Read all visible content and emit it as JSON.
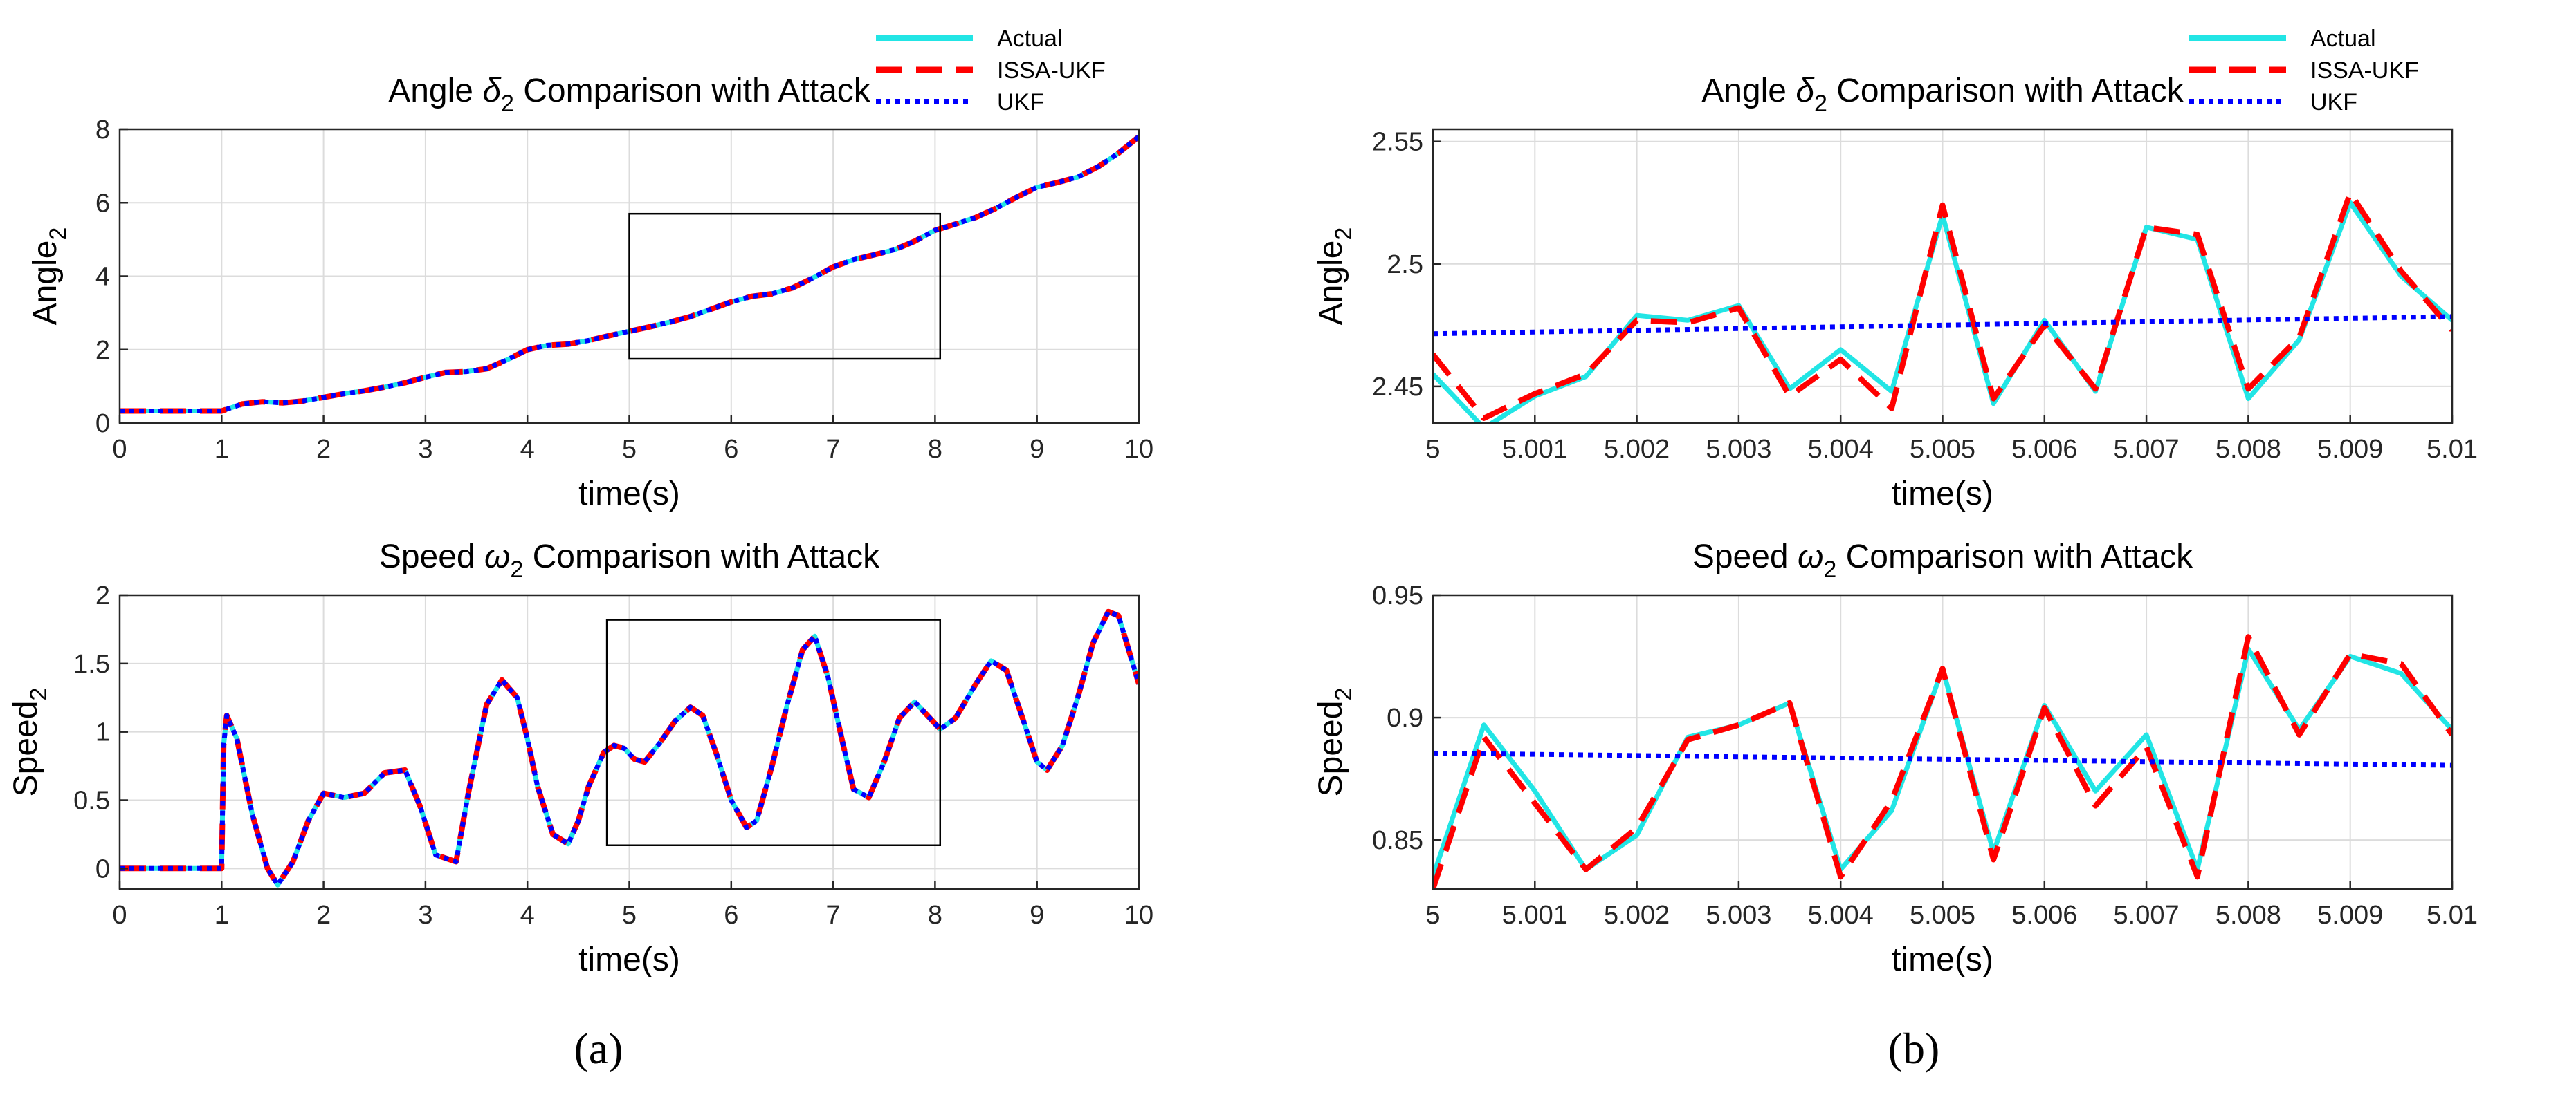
{
  "panel_labels": {
    "a": "(a)",
    "b": "(b)"
  },
  "colors": {
    "actual": "#22e5e5",
    "issa_ukf": "#ff0000",
    "ukf": "#0000ff",
    "grid": "#dcdcdc",
    "axis": "#262626"
  },
  "chart_data": [
    {
      "id": "a-angle",
      "type": "line",
      "title": "Angle δ2 Comparison with Attack",
      "title_parts": {
        "pre": "Angle ",
        "sym": "δ",
        "sub": "2",
        "post": " Comparison with Attack"
      },
      "xlabel": "time(s)",
      "ylabel_parts": {
        "base": "Angle",
        "sub": "2"
      },
      "xlim": [
        0,
        10
      ],
      "ylim": [
        0,
        8
      ],
      "xticks": [
        0,
        1,
        2,
        3,
        4,
        5,
        6,
        7,
        8,
        9,
        10
      ],
      "xtick_labels": [
        "0",
        "1",
        "2",
        "3",
        "4",
        "5",
        "6",
        "7",
        "8",
        "9",
        "10"
      ],
      "yticks": [
        0,
        2,
        4,
        6,
        8
      ],
      "ytick_labels": [
        "0",
        "2",
        "4",
        "6",
        "8"
      ],
      "zoom_box": {
        "x": [
          5.0,
          8.05
        ],
        "y": [
          1.75,
          5.7
        ]
      },
      "series": [
        {
          "name": "Actual",
          "x": [
            0,
            0.5,
            1,
            1.2,
            1.4,
            1.6,
            1.8,
            2,
            2.2,
            2.4,
            2.6,
            2.8,
            3,
            3.2,
            3.4,
            3.6,
            3.8,
            4,
            4.2,
            4.4,
            4.6,
            4.8,
            5,
            5.2,
            5.4,
            5.6,
            5.8,
            6,
            6.2,
            6.4,
            6.6,
            6.8,
            7,
            7.2,
            7.4,
            7.6,
            7.8,
            8,
            8.2,
            8.4,
            8.6,
            8.8,
            9,
            9.2,
            9.4,
            9.6,
            9.8,
            10
          ],
          "y": [
            0.33,
            0.33,
            0.33,
            0.52,
            0.58,
            0.55,
            0.6,
            0.7,
            0.8,
            0.88,
            0.98,
            1.1,
            1.25,
            1.38,
            1.4,
            1.48,
            1.72,
            2.0,
            2.12,
            2.15,
            2.25,
            2.38,
            2.5,
            2.62,
            2.75,
            2.9,
            3.1,
            3.3,
            3.45,
            3.52,
            3.68,
            3.95,
            4.25,
            4.45,
            4.58,
            4.72,
            4.95,
            5.25,
            5.42,
            5.6,
            5.85,
            6.15,
            6.42,
            6.55,
            6.7,
            6.98,
            7.35,
            7.8
          ]
        },
        {
          "name": "ISSA-UKF",
          "same_as": "Actual"
        },
        {
          "name": "UKF",
          "same_as": "Actual"
        }
      ],
      "legend": {
        "placement": "top-right-outside",
        "entries": [
          "Actual",
          "ISSA-UKF",
          "UKF"
        ]
      }
    },
    {
      "id": "a-speed",
      "type": "line",
      "title": "Speed ω2 Comparison with Attack",
      "title_parts": {
        "pre": "Speed ",
        "sym": "ω",
        "sub": "2",
        "post": " Comparison with Attack"
      },
      "xlabel": "time(s)",
      "ylabel_parts": {
        "base": "Speed",
        "sub": "2"
      },
      "xlim": [
        0,
        10
      ],
      "ylim": [
        -0.15,
        2
      ],
      "xticks": [
        0,
        1,
        2,
        3,
        4,
        5,
        6,
        7,
        8,
        9,
        10
      ],
      "xtick_labels": [
        "0",
        "1",
        "2",
        "3",
        "4",
        "5",
        "6",
        "7",
        "8",
        "9",
        "10"
      ],
      "yticks": [
        0,
        0.5,
        1,
        1.5,
        2
      ],
      "ytick_labels": [
        "0",
        "0.5",
        "1",
        "1.5",
        "2"
      ],
      "zoom_box": {
        "x": [
          4.78,
          8.05
        ],
        "y": [
          0.17,
          1.82
        ]
      },
      "series": [
        {
          "name": "Actual",
          "x": [
            0,
            0.5,
            1.0,
            1.02,
            1.05,
            1.15,
            1.3,
            1.45,
            1.55,
            1.7,
            1.85,
            2.0,
            2.2,
            2.4,
            2.6,
            2.8,
            2.95,
            3.1,
            3.3,
            3.42,
            3.6,
            3.75,
            3.9,
            4.0,
            4.1,
            4.25,
            4.4,
            4.5,
            4.6,
            4.75,
            4.85,
            4.95,
            5.05,
            5.15,
            5.3,
            5.45,
            5.6,
            5.72,
            5.85,
            6.0,
            6.15,
            6.25,
            6.4,
            6.55,
            6.7,
            6.82,
            6.95,
            7.1,
            7.2,
            7.35,
            7.5,
            7.65,
            7.8,
            7.95,
            8.05,
            8.2,
            8.4,
            8.55,
            8.7,
            8.85,
            9.0,
            9.1,
            9.25,
            9.4,
            9.55,
            9.7,
            9.8,
            9.9,
            10.0
          ],
          "y": [
            0,
            0,
            0,
            0.9,
            1.12,
            0.95,
            0.4,
            0.0,
            -0.12,
            0.05,
            0.35,
            0.55,
            0.52,
            0.55,
            0.7,
            0.72,
            0.45,
            0.1,
            0.05,
            0.55,
            1.2,
            1.38,
            1.25,
            0.95,
            0.6,
            0.25,
            0.18,
            0.35,
            0.6,
            0.85,
            0.9,
            0.88,
            0.8,
            0.78,
            0.92,
            1.08,
            1.18,
            1.12,
            0.85,
            0.5,
            0.3,
            0.35,
            0.75,
            1.2,
            1.6,
            1.7,
            1.4,
            0.9,
            0.58,
            0.52,
            0.78,
            1.1,
            1.22,
            1.1,
            1.02,
            1.1,
            1.35,
            1.52,
            1.45,
            1.12,
            0.78,
            0.72,
            0.9,
            1.25,
            1.65,
            1.88,
            1.85,
            1.6,
            1.35
          ]
        },
        {
          "name": "ISSA-UKF",
          "same_as": "Actual"
        },
        {
          "name": "UKF",
          "same_as": "Actual"
        }
      ]
    },
    {
      "id": "b-angle",
      "type": "line",
      "title": "Angle δ2 Comparison with Attack",
      "title_parts": {
        "pre": "Angle ",
        "sym": "δ",
        "sub": "2",
        "post": " Comparison with Attack"
      },
      "xlabel": "time(s)",
      "ylabel_parts": {
        "base": "Angle",
        "sub": "2"
      },
      "xlim": [
        5,
        5.01
      ],
      "ylim": [
        2.435,
        2.555
      ],
      "xticks": [
        5,
        5.001,
        5.002,
        5.003,
        5.004,
        5.005,
        5.006,
        5.007,
        5.008,
        5.009,
        5.01
      ],
      "xtick_labels": [
        "5",
        "5.001",
        "5.002",
        "5.003",
        "5.004",
        "5.005",
        "5.006",
        "5.007",
        "5.008",
        "5.009",
        "5.01"
      ],
      "yticks": [
        2.45,
        2.5,
        2.55
      ],
      "ytick_labels": [
        "2.45",
        "2.5",
        "2.55"
      ],
      "series": [
        {
          "name": "Actual",
          "x": [
            5,
            5.0005,
            5.001,
            5.0015,
            5.002,
            5.0025,
            5.003,
            5.0035,
            5.004,
            5.0045,
            5.005,
            5.0055,
            5.006,
            5.0065,
            5.007,
            5.0075,
            5.008,
            5.0085,
            5.009,
            5.0095,
            5.01
          ],
          "y": [
            2.455,
            2.433,
            2.446,
            2.454,
            2.479,
            2.477,
            2.483,
            2.449,
            2.465,
            2.448,
            2.52,
            2.443,
            2.477,
            2.448,
            2.515,
            2.51,
            2.445,
            2.469,
            2.525,
            2.495,
            2.477
          ]
        },
        {
          "name": "ISSA-UKF",
          "x": [
            5,
            5.0005,
            5.001,
            5.0015,
            5.002,
            5.0025,
            5.003,
            5.0035,
            5.004,
            5.0045,
            5.005,
            5.0055,
            5.006,
            5.0065,
            5.007,
            5.0075,
            5.008,
            5.0085,
            5.009,
            5.0095,
            5.01
          ],
          "y": [
            2.463,
            2.437,
            2.447,
            2.455,
            2.477,
            2.476,
            2.482,
            2.446,
            2.461,
            2.441,
            2.524,
            2.445,
            2.475,
            2.449,
            2.515,
            2.512,
            2.449,
            2.47,
            2.529,
            2.497,
            2.473
          ]
        },
        {
          "name": "UKF",
          "x": [
            5,
            5.01
          ],
          "y": [
            2.4715,
            2.4785
          ]
        }
      ],
      "legend": {
        "placement": "top-right-outside",
        "entries": [
          "Actual",
          "ISSA-UKF",
          "UKF"
        ]
      }
    },
    {
      "id": "b-speed",
      "type": "line",
      "title": "Speed ω2 Comparison with Attack",
      "title_parts": {
        "pre": "Speed ",
        "sym": "ω",
        "sub": "2",
        "post": " Comparison with Attack"
      },
      "xlabel": "time(s)",
      "ylabel_parts": {
        "base": "Speed",
        "sub": "2"
      },
      "xlim": [
        5,
        5.01
      ],
      "ylim": [
        0.83,
        0.95
      ],
      "xticks": [
        5,
        5.001,
        5.002,
        5.003,
        5.004,
        5.005,
        5.006,
        5.007,
        5.008,
        5.009,
        5.01
      ],
      "xtick_labels": [
        "5",
        "5.001",
        "5.002",
        "5.003",
        "5.004",
        "5.005",
        "5.006",
        "5.007",
        "5.008",
        "5.009",
        "5.01"
      ],
      "yticks": [
        0.85,
        0.9,
        0.95
      ],
      "ytick_labels": [
        "0.85",
        "0.9",
        "0.95"
      ],
      "series": [
        {
          "name": "Actual",
          "x": [
            5,
            5.0005,
            5.001,
            5.0015,
            5.002,
            5.0025,
            5.003,
            5.0035,
            5.004,
            5.0045,
            5.005,
            5.0055,
            5.006,
            5.0065,
            5.007,
            5.0075,
            5.008,
            5.0085,
            5.009,
            5.0095,
            5.01
          ],
          "y": [
            0.835,
            0.897,
            0.87,
            0.838,
            0.852,
            0.892,
            0.897,
            0.906,
            0.838,
            0.862,
            0.92,
            0.845,
            0.905,
            0.87,
            0.893,
            0.838,
            0.928,
            0.895,
            0.925,
            0.918,
            0.895
          ]
        },
        {
          "name": "ISSA-UKF",
          "x": [
            5,
            5.0005,
            5.001,
            5.0015,
            5.002,
            5.0025,
            5.003,
            5.0035,
            5.004,
            5.0045,
            5.005,
            5.0055,
            5.006,
            5.0065,
            5.007,
            5.0075,
            5.008,
            5.0085,
            5.009,
            5.0095,
            5.01
          ],
          "y": [
            0.83,
            0.892,
            0.865,
            0.838,
            0.855,
            0.891,
            0.897,
            0.906,
            0.835,
            0.866,
            0.92,
            0.842,
            0.904,
            0.864,
            0.888,
            0.835,
            0.933,
            0.893,
            0.926,
            0.922,
            0.893
          ]
        },
        {
          "name": "UKF",
          "x": [
            5,
            5.01
          ],
          "y": [
            0.8855,
            0.8805
          ]
        }
      ]
    }
  ]
}
